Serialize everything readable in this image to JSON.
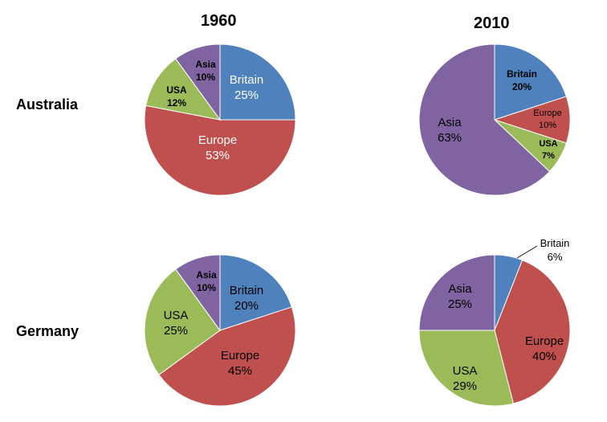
{
  "figure": {
    "columns": [
      "1960",
      "2010"
    ],
    "rows": [
      "Australia",
      "Germany"
    ]
  },
  "colors": {
    "Britain": "#4F81BD",
    "Europe": "#C0504D",
    "USA": "#9BBB59",
    "Asia": "#8064A2"
  },
  "chart_data": [
    {
      "type": "pie",
      "country": "Australia",
      "year": "1960",
      "slices": [
        {
          "label": "Britain",
          "value": 25,
          "text": "25%"
        },
        {
          "label": "Europe",
          "value": 53,
          "text": "53%"
        },
        {
          "label": "USA",
          "value": 12,
          "text": "12%"
        },
        {
          "label": "Asia",
          "value": 10,
          "text": "10%"
        }
      ]
    },
    {
      "type": "pie",
      "country": "Australia",
      "year": "2010",
      "slices": [
        {
          "label": "Britain",
          "value": 20,
          "text": "20%"
        },
        {
          "label": "Europe",
          "value": 10,
          "text": "10%"
        },
        {
          "label": "USA",
          "value": 7,
          "text": "7%"
        },
        {
          "label": "Asia",
          "value": 63,
          "text": "63%"
        }
      ]
    },
    {
      "type": "pie",
      "country": "Germany",
      "year": "1960",
      "slices": [
        {
          "label": "Britain",
          "value": 20,
          "text": "20%"
        },
        {
          "label": "Europe",
          "value": 45,
          "text": "45%"
        },
        {
          "label": "USA",
          "value": 25,
          "text": "25%"
        },
        {
          "label": "Asia",
          "value": 10,
          "text": "10%"
        }
      ]
    },
    {
      "type": "pie",
      "country": "Germany",
      "year": "2010",
      "slices": [
        {
          "label": "Britain",
          "value": 6,
          "text": "6%"
        },
        {
          "label": "Europe",
          "value": 40,
          "text": "40%"
        },
        {
          "label": "USA",
          "value": 29,
          "text": "29%"
        },
        {
          "label": "Asia",
          "value": 25,
          "text": "25%"
        }
      ]
    }
  ]
}
